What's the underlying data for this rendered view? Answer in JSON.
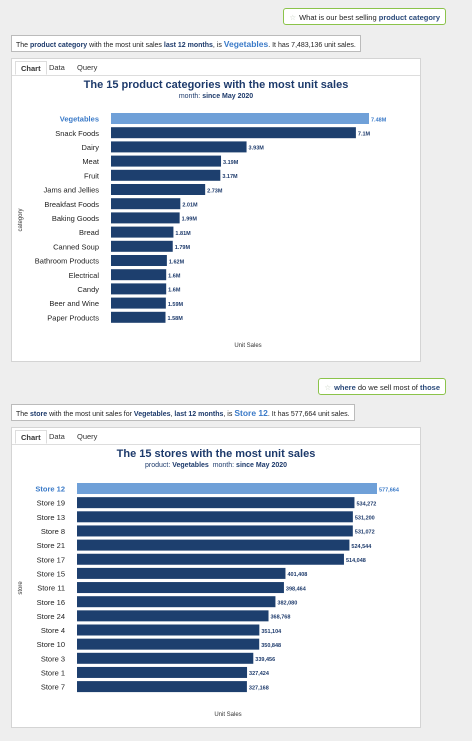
{
  "conversation": [
    {
      "question": {
        "star": "☆",
        "prefix": "What is our best selling",
        "bold": "product category"
      },
      "answer": {
        "t1": "The",
        "b1": "product category",
        "t2": "with the most unit sales",
        "b2": "last 12 months",
        "t3": ", is",
        "hl": "Vegetables",
        "t4": ". It has 7,483,136 unit sales."
      },
      "tabs": [
        "Chart",
        "Data",
        "Query"
      ],
      "active_tab": "Chart",
      "chart_data": {
        "type": "bar",
        "orientation": "horizontal",
        "title": "The 15 product categories with the most unit sales",
        "subtitle_label": "month:",
        "subtitle_value": "since May 2020",
        "xlabel": "Unit Sales",
        "ylabel": "category",
        "categories": [
          "Vegetables",
          "Snack Foods",
          "Dairy",
          "Meat",
          "Fruit",
          "Jams and Jellies",
          "Breakfast Foods",
          "Baking Goods",
          "Bread",
          "Canned Soup",
          "Bathroom Products",
          "Electrical",
          "Candy",
          "Beer and Wine",
          "Paper Products"
        ],
        "values": [
          7480000,
          7100000,
          3930000,
          3190000,
          3170000,
          2730000,
          2010000,
          1990000,
          1810000,
          1790000,
          1620000,
          1600000,
          1600000,
          1590000,
          1580000
        ],
        "value_labels": [
          "7.48M",
          "7.1M",
          "3.93M",
          "3.19M",
          "3.17M",
          "2.73M",
          "2.01M",
          "1.99M",
          "1.81M",
          "1.79M",
          "1.62M",
          "1.6M",
          "1.6M",
          "1.59M",
          "1.58M"
        ],
        "highlight_index": 0,
        "colors": {
          "bar": "#1d3f6e",
          "highlight": "#6fa0d8",
          "highlight_label": "#3a7ac8",
          "value_label": "#1d3a6b"
        }
      }
    },
    {
      "question": {
        "star": "☆",
        "bold1": "where",
        "mid": "do we sell most of",
        "bold2": "those"
      },
      "answer": {
        "t1": "The",
        "b1": "store",
        "t2": "with the most unit sales for",
        "b2": "Vegetables",
        "t3": ",",
        "b3": "last 12 months",
        "t4": ", is",
        "hl": "Store 12",
        "t5": ". It has 577,664 unit sales."
      },
      "tabs": [
        "Chart",
        "Data",
        "Query"
      ],
      "active_tab": "Chart",
      "chart_data": {
        "type": "bar",
        "orientation": "horizontal",
        "title": "The 15 stores with the most unit sales",
        "subtitle_label": "product:",
        "subtitle_value": "Vegetables",
        "subtitle_label2": "month:",
        "subtitle_value2": "since May 2020",
        "xlabel": "Unit Sales",
        "ylabel": "store",
        "categories": [
          "Store 12",
          "Store 19",
          "Store 13",
          "Store 8",
          "Store 21",
          "Store 17",
          "Store 15",
          "Store 11",
          "Store 16",
          "Store 24",
          "Store 4",
          "Store 10",
          "Store 3",
          "Store 1",
          "Store 7"
        ],
        "values": [
          577664,
          534272,
          531200,
          531072,
          524544,
          514048,
          401408,
          398464,
          382080,
          368768,
          351104,
          350848,
          339456,
          327424,
          327168
        ],
        "value_labels": [
          "577,664",
          "534,272",
          "531,200",
          "531,072",
          "524,544",
          "514,048",
          "401,408",
          "398,464",
          "382,080",
          "368,768",
          "351,104",
          "350,848",
          "339,456",
          "327,424",
          "327,168"
        ],
        "highlight_index": 0,
        "colors": {
          "bar": "#1d3f6e",
          "highlight": "#6fa0d8",
          "highlight_label": "#3a7ac8",
          "value_label": "#1d3a6b"
        }
      }
    }
  ]
}
